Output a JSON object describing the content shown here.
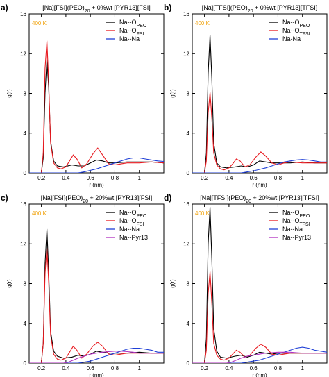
{
  "chart_data": [
    {
      "panel_label": "a)",
      "type": "line",
      "title_parts": [
        "[Na][FSI](PEO)",
        "20",
        " + 0%wt  [PYR13][FSI]"
      ],
      "temperature": "400 K",
      "xlabel": "r (nm)",
      "ylabel": "g(r)",
      "xlim": [
        0.1,
        1.2
      ],
      "ylim": [
        0,
        16
      ],
      "xticks": [
        0.2,
        0.4,
        0.6,
        0.8,
        1
      ],
      "yticks": [
        0,
        4,
        8,
        12,
        16
      ],
      "legend_position": "top-right",
      "series": [
        {
          "name_parts": [
            "Na--O",
            "PEO"
          ],
          "color": "#000000",
          "x": [
            0.1,
            0.2,
            0.215,
            0.23,
            0.245,
            0.26,
            0.275,
            0.3,
            0.33,
            0.38,
            0.45,
            0.5,
            0.55,
            0.6,
            0.65,
            0.7,
            0.75,
            0.8,
            0.9,
            1.0,
            1.1,
            1.2
          ],
          "y": [
            0,
            0,
            1.5,
            8.0,
            11.4,
            8.5,
            3.2,
            1.2,
            0.7,
            0.6,
            0.8,
            0.7,
            0.7,
            1.0,
            1.3,
            1.2,
            1.0,
            1.0,
            1.1,
            1.1,
            1.1,
            1.0
          ]
        },
        {
          "name_parts": [
            "Na--O",
            "FSI"
          ],
          "color": "#e8191f",
          "x": [
            0.1,
            0.2,
            0.215,
            0.23,
            0.245,
            0.26,
            0.275,
            0.3,
            0.33,
            0.36,
            0.4,
            0.43,
            0.46,
            0.49,
            0.53,
            0.57,
            0.62,
            0.66,
            0.7,
            0.75,
            0.8,
            0.85,
            0.9,
            1.0,
            1.1,
            1.2
          ],
          "y": [
            0,
            0,
            2.0,
            10.5,
            13.3,
            9.0,
            3.0,
            1.0,
            0.5,
            0.4,
            0.6,
            1.2,
            1.8,
            1.4,
            0.5,
            0.9,
            1.9,
            2.5,
            1.8,
            0.9,
            0.8,
            0.9,
            1.0,
            1.0,
            1.1,
            1.0
          ]
        },
        {
          "name_parts": [
            "Na--Na"
          ],
          "color": "#1f3fd6",
          "x": [
            0.1,
            0.5,
            0.55,
            0.6,
            0.65,
            0.7,
            0.75,
            0.8,
            0.85,
            0.9,
            0.95,
            1.0,
            1.05,
            1.1,
            1.15,
            1.2
          ],
          "y": [
            0,
            0,
            0.1,
            0.25,
            0.4,
            0.6,
            0.8,
            1.0,
            1.2,
            1.4,
            1.5,
            1.5,
            1.4,
            1.3,
            1.2,
            1.15
          ]
        }
      ]
    },
    {
      "panel_label": "b)",
      "type": "line",
      "title_parts": [
        "[Na][TFSI](PEO)",
        "20",
        " + 0%wt  [PYR13][TFSI]"
      ],
      "temperature": "400 K",
      "xlabel": "r (nm)",
      "ylabel": "g(r)",
      "xlim": [
        0.1,
        1.2
      ],
      "ylim": [
        0,
        16
      ],
      "xticks": [
        0.2,
        0.4,
        0.6,
        0.8,
        1
      ],
      "yticks": [
        0,
        4,
        8,
        12,
        16
      ],
      "legend_position": "top-right",
      "series": [
        {
          "name_parts": [
            "Na--O",
            "PEO"
          ],
          "color": "#000000",
          "x": [
            0.1,
            0.2,
            0.215,
            0.23,
            0.245,
            0.26,
            0.275,
            0.3,
            0.33,
            0.38,
            0.45,
            0.5,
            0.55,
            0.6,
            0.65,
            0.7,
            0.75,
            0.8,
            0.9,
            1.0,
            1.1,
            1.2
          ],
          "y": [
            0,
            0,
            2.0,
            10.0,
            13.9,
            9.5,
            3.0,
            1.0,
            0.6,
            0.5,
            0.6,
            0.7,
            0.6,
            0.8,
            1.2,
            1.1,
            1.0,
            1.0,
            1.0,
            1.1,
            1.0,
            1.0
          ]
        },
        {
          "name_parts": [
            "Na--O",
            "TFSI"
          ],
          "color": "#e8191f",
          "x": [
            0.1,
            0.2,
            0.215,
            0.23,
            0.245,
            0.26,
            0.275,
            0.3,
            0.33,
            0.36,
            0.4,
            0.43,
            0.46,
            0.49,
            0.53,
            0.57,
            0.62,
            0.66,
            0.7,
            0.75,
            0.8,
            0.85,
            0.9,
            1.0,
            1.1,
            1.2
          ],
          "y": [
            0,
            0,
            1.2,
            6.0,
            8.1,
            5.5,
            2.0,
            0.8,
            0.4,
            0.3,
            0.5,
            0.9,
            1.4,
            1.2,
            0.6,
            0.8,
            1.6,
            2.1,
            1.7,
            1.0,
            0.8,
            1.0,
            1.1,
            1.0,
            1.0,
            1.0
          ]
        },
        {
          "name_parts": [
            "Na-Na"
          ],
          "color": "#1f3fd6",
          "x": [
            0.1,
            0.5,
            0.55,
            0.6,
            0.65,
            0.7,
            0.75,
            0.8,
            0.85,
            0.9,
            0.95,
            1.0,
            1.05,
            1.1,
            1.15,
            1.2
          ],
          "y": [
            0,
            0,
            0.1,
            0.2,
            0.35,
            0.5,
            0.7,
            0.9,
            1.1,
            1.2,
            1.3,
            1.35,
            1.3,
            1.2,
            1.1,
            1.1
          ]
        }
      ]
    },
    {
      "panel_label": "c)",
      "type": "line",
      "title_parts": [
        "[Na][FSI](PEO)",
        "20",
        " + 20%wt  [PYR13][FSI]"
      ],
      "temperature": "400 K",
      "xlabel": "r (nm)",
      "ylabel": "g(r)",
      "xlim": [
        0.1,
        1.2
      ],
      "ylim": [
        0,
        16
      ],
      "xticks": [
        0.2,
        0.4,
        0.6,
        0.8,
        1
      ],
      "yticks": [
        0,
        4,
        8,
        12,
        16
      ],
      "legend_position": "top-right",
      "series": [
        {
          "name_parts": [
            "Na--O",
            "PEO"
          ],
          "color": "#000000",
          "x": [
            0.1,
            0.2,
            0.215,
            0.23,
            0.245,
            0.26,
            0.275,
            0.3,
            0.33,
            0.38,
            0.45,
            0.5,
            0.55,
            0.6,
            0.65,
            0.7,
            0.75,
            0.8,
            0.9,
            1.0,
            1.1,
            1.2
          ],
          "y": [
            0,
            0,
            2.0,
            10.0,
            13.5,
            9.0,
            3.2,
            1.2,
            0.7,
            0.5,
            0.6,
            0.8,
            0.7,
            0.9,
            1.2,
            1.1,
            1.0,
            1.0,
            1.0,
            1.1,
            1.0,
            1.0
          ]
        },
        {
          "name_parts": [
            "Na--O",
            "FSI"
          ],
          "color": "#e8191f",
          "x": [
            0.1,
            0.2,
            0.215,
            0.23,
            0.245,
            0.26,
            0.275,
            0.3,
            0.33,
            0.36,
            0.4,
            0.43,
            0.46,
            0.49,
            0.53,
            0.57,
            0.62,
            0.66,
            0.7,
            0.75,
            0.8,
            0.85,
            0.9,
            1.0,
            1.1,
            1.2
          ],
          "y": [
            0,
            0,
            2.0,
            9.0,
            11.6,
            8.0,
            2.8,
            0.9,
            0.4,
            0.3,
            0.5,
            1.1,
            1.7,
            1.3,
            0.5,
            0.9,
            1.7,
            2.1,
            1.7,
            0.9,
            0.8,
            0.9,
            1.0,
            1.0,
            1.0,
            1.0
          ]
        },
        {
          "name_parts": [
            "Na--Na"
          ],
          "color": "#1f3fd6",
          "x": [
            0.1,
            0.5,
            0.55,
            0.6,
            0.65,
            0.7,
            0.75,
            0.8,
            0.85,
            0.9,
            0.95,
            1.0,
            1.05,
            1.1,
            1.15,
            1.2
          ],
          "y": [
            0,
            0,
            0.1,
            0.2,
            0.4,
            0.6,
            0.8,
            1.0,
            1.2,
            1.4,
            1.5,
            1.5,
            1.4,
            1.3,
            1.1,
            1.1
          ]
        },
        {
          "name_parts": [
            "Na--Pyr13"
          ],
          "color": "#b02fc0",
          "x": [
            0.1,
            0.38,
            0.42,
            0.46,
            0.5,
            0.55,
            0.6,
            0.65,
            0.7,
            0.75,
            0.8,
            0.85,
            0.9,
            0.95,
            1.0,
            1.1,
            1.2
          ],
          "y": [
            0,
            0,
            0.1,
            0.3,
            0.5,
            0.7,
            0.9,
            1.0,
            1.1,
            1.15,
            1.2,
            1.2,
            1.15,
            1.1,
            1.0,
            1.0,
            1.0
          ]
        }
      ]
    },
    {
      "panel_label": "d)",
      "type": "line",
      "title_parts": [
        "[Na][TFSI](PEO)",
        "20",
        " + 20%wt  [PYR13][TFSI]"
      ],
      "temperature": "400 K",
      "xlabel": "r (nm)",
      "ylabel": "g(r)",
      "xlim": [
        0.1,
        1.2
      ],
      "ylim": [
        0,
        16
      ],
      "xticks": [
        0.2,
        0.4,
        0.6,
        0.8,
        1
      ],
      "yticks": [
        0,
        4,
        8,
        12,
        16
      ],
      "legend_position": "top-right",
      "series": [
        {
          "name_parts": [
            "Na--O",
            "PEO"
          ],
          "color": "#000000",
          "x": [
            0.1,
            0.2,
            0.215,
            0.23,
            0.245,
            0.26,
            0.275,
            0.3,
            0.33,
            0.38,
            0.45,
            0.5,
            0.55,
            0.6,
            0.65,
            0.7,
            0.75,
            0.8,
            0.9,
            1.0,
            1.1,
            1.2
          ],
          "y": [
            0,
            0,
            2.5,
            12.0,
            15.7,
            10.5,
            3.5,
            1.2,
            0.6,
            0.5,
            0.7,
            0.8,
            0.6,
            0.8,
            1.1,
            1.0,
            0.9,
            1.0,
            1.0,
            1.0,
            1.0,
            1.0
          ]
        },
        {
          "name_parts": [
            "Na--O",
            "TFSI"
          ],
          "color": "#e8191f",
          "x": [
            0.1,
            0.2,
            0.215,
            0.23,
            0.245,
            0.26,
            0.275,
            0.3,
            0.33,
            0.36,
            0.4,
            0.43,
            0.46,
            0.49,
            0.53,
            0.57,
            0.62,
            0.66,
            0.7,
            0.75,
            0.8,
            0.85,
            0.9,
            1.0,
            1.1,
            1.2
          ],
          "y": [
            0,
            0,
            1.3,
            7.0,
            9.2,
            6.0,
            2.0,
            0.8,
            0.4,
            0.3,
            0.5,
            0.9,
            1.3,
            1.1,
            0.6,
            0.8,
            1.5,
            1.9,
            1.6,
            0.9,
            0.8,
            0.9,
            1.0,
            1.0,
            1.0,
            1.0
          ]
        },
        {
          "name_parts": [
            "Na--Na"
          ],
          "color": "#1f3fd6",
          "x": [
            0.1,
            0.5,
            0.55,
            0.6,
            0.65,
            0.7,
            0.75,
            0.8,
            0.85,
            0.9,
            0.95,
            1.0,
            1.05,
            1.1,
            1.15,
            1.2
          ],
          "y": [
            0,
            0,
            0.1,
            0.2,
            0.3,
            0.5,
            0.7,
            0.9,
            1.1,
            1.3,
            1.5,
            1.6,
            1.5,
            1.3,
            1.2,
            1.1
          ]
        },
        {
          "name_parts": [
            "Na--Pyr13"
          ],
          "color": "#b02fc0",
          "x": [
            0.1,
            0.38,
            0.42,
            0.46,
            0.5,
            0.55,
            0.6,
            0.65,
            0.7,
            0.75,
            0.8,
            0.85,
            0.9,
            0.95,
            1.0,
            1.1,
            1.2
          ],
          "y": [
            0,
            0,
            0.1,
            0.3,
            0.5,
            0.7,
            0.8,
            0.9,
            1.0,
            1.05,
            1.1,
            1.1,
            1.1,
            1.05,
            1.0,
            1.0,
            1.0
          ]
        }
      ]
    }
  ]
}
